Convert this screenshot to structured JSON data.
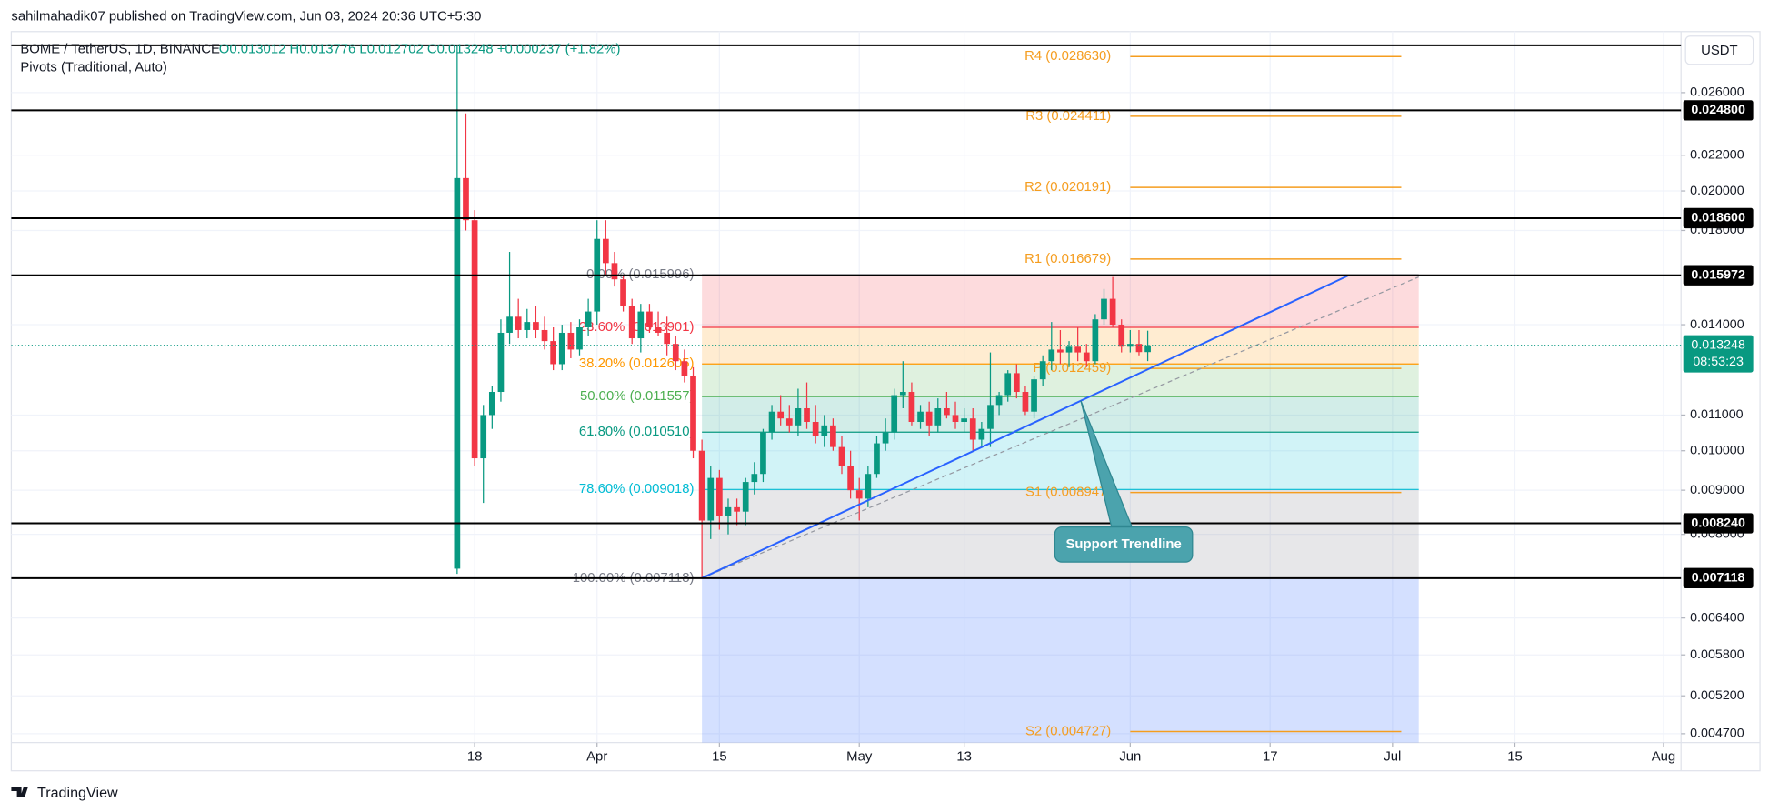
{
  "chart_data": {
    "type": "candlestick",
    "publisher": "sahilmahadik07 published on TradingView.com, Jun 03, 2024 20:36 UTC+5:30",
    "title": "BOME / TetherUS, 1D, BINANCE",
    "ohlc_summary": "O0.013012 H0.013776 L0.012702 C0.013248 +0.000237 (+1.82%)",
    "indicator": "Pivots (Traditional, Auto)",
    "price_axis_unit": "USDT",
    "brand": "TradingView",
    "log_scale": true,
    "grid": true,
    "up_color": "#089981",
    "down_color": "#f23645",
    "xlim": [
      "2024-01-25",
      "2024-08-03"
    ],
    "ylim": [
      0.00459,
      0.0306
    ],
    "xticks": [
      {
        "value": "2024-03-18",
        "label": "18"
      },
      {
        "value": "2024-04-01",
        "label": "Apr"
      },
      {
        "value": "2024-04-15",
        "label": "15"
      },
      {
        "value": "2024-05-01",
        "label": "May"
      },
      {
        "value": "2024-05-13",
        "label": "13"
      },
      {
        "value": "2024-06-01",
        "label": "Jun"
      },
      {
        "value": "2024-06-17",
        "label": "17"
      },
      {
        "value": "2024-07-01",
        "label": "Jul"
      },
      {
        "value": "2024-07-15",
        "label": "15"
      },
      {
        "value": "2024-08-01",
        "label": "Aug"
      }
    ],
    "yticks": [
      {
        "value": 0.026,
        "label": "0.026000"
      },
      {
        "value": 0.022,
        "label": "0.022000"
      },
      {
        "value": 0.02,
        "label": "0.020000"
      },
      {
        "value": 0.018,
        "label": "0.018000"
      },
      {
        "value": 0.014,
        "label": "0.014000"
      },
      {
        "value": 0.011,
        "label": "0.011000"
      },
      {
        "value": 0.01,
        "label": "0.010000"
      },
      {
        "value": 0.009,
        "label": "0.009000"
      },
      {
        "value": 0.008,
        "label": "0.008000"
      },
      {
        "value": 0.0064,
        "label": "0.006400"
      },
      {
        "value": 0.0058,
        "label": "0.005800"
      },
      {
        "value": 0.0052,
        "label": "0.005200"
      },
      {
        "value": 0.0047,
        "label": "0.004700"
      }
    ],
    "x": [
      "2024-03-16",
      "2024-03-17",
      "2024-03-18",
      "2024-03-19",
      "2024-03-20",
      "2024-03-21",
      "2024-03-22",
      "2024-03-23",
      "2024-03-24",
      "2024-03-25",
      "2024-03-26",
      "2024-03-27",
      "2024-03-28",
      "2024-03-29",
      "2024-03-30",
      "2024-03-31",
      "2024-04-01",
      "2024-04-02",
      "2024-04-03",
      "2024-04-04",
      "2024-04-05",
      "2024-04-06",
      "2024-04-07",
      "2024-04-08",
      "2024-04-09",
      "2024-04-10",
      "2024-04-11",
      "2024-04-12",
      "2024-04-13",
      "2024-04-14",
      "2024-04-15",
      "2024-04-16",
      "2024-04-17",
      "2024-04-18",
      "2024-04-19",
      "2024-04-20",
      "2024-04-21",
      "2024-04-22",
      "2024-04-23",
      "2024-04-24",
      "2024-04-25",
      "2024-04-26",
      "2024-04-27",
      "2024-04-28",
      "2024-04-29",
      "2024-04-30",
      "2024-05-01",
      "2024-05-02",
      "2024-05-03",
      "2024-05-04",
      "2024-05-05",
      "2024-05-06",
      "2024-05-07",
      "2024-05-08",
      "2024-05-09",
      "2024-05-10",
      "2024-05-11",
      "2024-05-12",
      "2024-05-13",
      "2024-05-14",
      "2024-05-15",
      "2024-05-16",
      "2024-05-17",
      "2024-05-18",
      "2024-05-19",
      "2024-05-20",
      "2024-05-21",
      "2024-05-22",
      "2024-05-23",
      "2024-05-24",
      "2024-05-25",
      "2024-05-26",
      "2024-05-27",
      "2024-05-28",
      "2024-05-29",
      "2024-05-30",
      "2024-05-31",
      "2024-06-01",
      "2024-06-02",
      "2024-06-03"
    ],
    "open": [
      0.0073,
      0.0207,
      0.0185,
      0.0098,
      0.011,
      0.0117,
      0.0137,
      0.0143,
      0.0138,
      0.0141,
      0.0138,
      0.0134,
      0.0126,
      0.0137,
      0.0131,
      0.0139,
      0.0145,
      0.0176,
      0.0165,
      0.0158,
      0.0147,
      0.0135,
      0.0145,
      0.0139,
      0.0137,
      0.0133,
      0.0127,
      0.0122,
      0.01,
      0.0083,
      0.0093,
      0.0084,
      0.0086,
      0.0085,
      0.0092,
      0.0094,
      0.0105,
      0.0111,
      0.0109,
      0.0107,
      0.0112,
      0.0108,
      0.0104,
      0.0107,
      0.0101,
      0.0096,
      0.009,
      0.0088,
      0.0094,
      0.0102,
      0.0105,
      0.0116,
      0.0117,
      0.0108,
      0.0111,
      0.0107,
      0.0112,
      0.011,
      0.0108,
      0.0109,
      0.0103,
      0.0106,
      0.0113,
      0.0116,
      0.0123,
      0.0117,
      0.0111,
      0.0121,
      0.0127,
      0.0131,
      0.013,
      0.0132,
      0.013,
      0.0127,
      0.0142,
      0.015,
      0.014,
      0.0132,
      0.0133,
      0.013012
    ],
    "high": [
      0.0295,
      0.0246,
      0.019,
      0.0113,
      0.0119,
      0.0142,
      0.017,
      0.015,
      0.0146,
      0.0147,
      0.0143,
      0.0139,
      0.014,
      0.0141,
      0.0142,
      0.015,
      0.0185,
      0.0185,
      0.017,
      0.016,
      0.015,
      0.0148,
      0.0148,
      0.0145,
      0.0143,
      0.0136,
      0.0131,
      0.0125,
      0.0103,
      0.0096,
      0.0095,
      0.0088,
      0.0088,
      0.0093,
      0.0097,
      0.0106,
      0.0113,
      0.0116,
      0.0113,
      0.0118,
      0.012,
      0.0113,
      0.011,
      0.0109,
      0.0104,
      0.01,
      0.0093,
      0.0096,
      0.0104,
      0.0109,
      0.0118,
      0.0127,
      0.012,
      0.0113,
      0.0114,
      0.0115,
      0.0117,
      0.0114,
      0.0112,
      0.0112,
      0.0108,
      0.013,
      0.0117,
      0.0124,
      0.0126,
      0.0119,
      0.0122,
      0.0129,
      0.0141,
      0.0138,
      0.0134,
      0.0139,
      0.0133,
      0.0144,
      0.0154,
      0.0159,
      0.0142,
      0.0138,
      0.0138,
      0.013776
    ],
    "low": [
      0.0072,
      0.018,
      0.0096,
      0.0087,
      0.0106,
      0.0114,
      0.0133,
      0.0135,
      0.0135,
      0.0135,
      0.0131,
      0.0124,
      0.0124,
      0.0128,
      0.0129,
      0.0136,
      0.014,
      0.016,
      0.0155,
      0.0145,
      0.0133,
      0.013,
      0.0137,
      0.0136,
      0.0129,
      0.0124,
      0.012,
      0.0098,
      0.007118,
      0.0079,
      0.0081,
      0.008,
      0.0082,
      0.0082,
      0.0089,
      0.0092,
      0.0103,
      0.0107,
      0.0105,
      0.0104,
      0.0106,
      0.0102,
      0.0101,
      0.01,
      0.0094,
      0.0088,
      0.0083,
      0.0086,
      0.0093,
      0.01,
      0.0103,
      0.0112,
      0.0107,
      0.0106,
      0.0104,
      0.0105,
      0.0109,
      0.0106,
      0.0105,
      0.01,
      0.0101,
      0.0101,
      0.011,
      0.0114,
      0.0115,
      0.011,
      0.0109,
      0.0119,
      0.0124,
      0.0126,
      0.0125,
      0.0127,
      0.0125,
      0.0126,
      0.014,
      0.0139,
      0.013,
      0.013,
      0.0129,
      0.012702
    ],
    "close": [
      0.0207,
      0.0185,
      0.0098,
      0.011,
      0.0117,
      0.0137,
      0.0143,
      0.0138,
      0.0141,
      0.0138,
      0.0134,
      0.0126,
      0.0137,
      0.0131,
      0.0139,
      0.0145,
      0.0176,
      0.0165,
      0.0158,
      0.0147,
      0.0135,
      0.0145,
      0.0139,
      0.0137,
      0.0133,
      0.0127,
      0.0122,
      0.01,
      0.0083,
      0.0093,
      0.0084,
      0.0086,
      0.0085,
      0.0092,
      0.0094,
      0.0105,
      0.0111,
      0.0109,
      0.0107,
      0.0112,
      0.0108,
      0.0104,
      0.0107,
      0.0101,
      0.0096,
      0.009,
      0.0088,
      0.0094,
      0.0102,
      0.0105,
      0.0116,
      0.0117,
      0.0108,
      0.0111,
      0.0107,
      0.0112,
      0.011,
      0.0108,
      0.0109,
      0.0103,
      0.0106,
      0.0113,
      0.0116,
      0.0123,
      0.0117,
      0.0111,
      0.0121,
      0.0127,
      0.0131,
      0.013,
      0.0132,
      0.013,
      0.0127,
      0.0142,
      0.015,
      0.014,
      0.0132,
      0.0133,
      0.013012,
      0.013248
    ],
    "last_price": 0.013248,
    "countdown": "08:53:23",
    "horizontal_lines": {
      "values": [
        0.0295,
        0.0248,
        0.0186,
        0.015972,
        0.00824,
        0.007118
      ],
      "value_labels": [
        null,
        "0.024800",
        "0.018600",
        "0.015972",
        "0.008240",
        "0.007118"
      ]
    },
    "pivot_color": "#f59d1f",
    "pivot_range": [
      "2024-06-01",
      "2024-07-02"
    ],
    "pivots": [
      {
        "value": 0.02863,
        "label": "R4 (0.028630)"
      },
      {
        "value": 0.024411,
        "label": "R3 (0.024411)"
      },
      {
        "value": 0.020191,
        "label": "R2 (0.020191)"
      },
      {
        "value": 0.016679,
        "label": "R1 (0.016679)"
      },
      {
        "value": 0.012459,
        "label": "P (0.012459)"
      },
      {
        "value": 0.008947,
        "label": "S1 (0.008947)"
      },
      {
        "value": 0.004727,
        "label": "S2 (0.004727)"
      }
    ],
    "fib_range": [
      "2024-04-13",
      "2024-07-04"
    ],
    "fib_extension_color": "#2962ff",
    "fib_levels": [
      {
        "value": 0.015996,
        "label": "0.00% (0.015996)",
        "color": "#787b86"
      },
      {
        "value": 0.013901,
        "label": "23.60% (0.013901)",
        "color": "#f23645"
      },
      {
        "value": 0.012605,
        "label": "38.20% (0.012605)",
        "color": "#ff9800"
      },
      {
        "value": 0.011557,
        "label": "50.00% (0.011557)",
        "color": "#4caf50"
      },
      {
        "value": 0.01051,
        "label": "61.80% (0.010510)",
        "color": "#089981"
      },
      {
        "value": 0.009018,
        "label": "78.60% (0.009018)",
        "color": "#00bcd4"
      },
      {
        "value": 0.007118,
        "label": "100.00% (0.007118)",
        "color": "#787b86"
      }
    ],
    "support_trendline": {
      "x": [
        "2024-04-13",
        "2024-06-26"
      ],
      "y": [
        0.007118,
        0.015972
      ],
      "color": "#2962ff"
    },
    "dashed_trendline": {
      "x": [
        "2024-04-13",
        "2024-07-04"
      ],
      "y": [
        0.007118,
        0.0159
      ],
      "color": "#9598a1"
    },
    "annotation": "Support Trendline"
  }
}
